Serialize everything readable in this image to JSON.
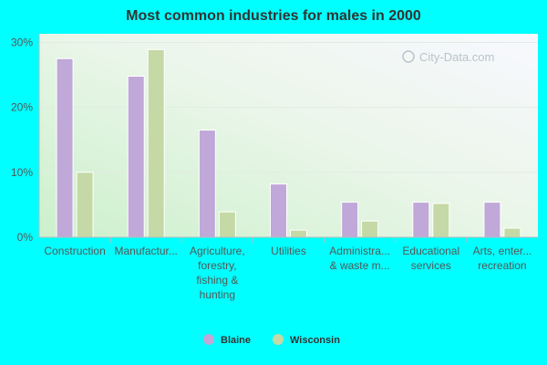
{
  "chart_data": {
    "type": "bar",
    "title": "Most common industries for males in 2000",
    "xlabel": "",
    "ylabel": "",
    "ylim": [
      0,
      30
    ],
    "y_ticks": [
      "0%",
      "10%",
      "20%",
      "30%"
    ],
    "categories": [
      [
        "Construction"
      ],
      [
        "Manufactur..."
      ],
      [
        "Agriculture,",
        "forestry,",
        "fishing &",
        "hunting"
      ],
      [
        "Utilities"
      ],
      [
        "Administra...",
        "& waste m..."
      ],
      [
        "Educational",
        "services"
      ],
      [
        "Arts, enter...",
        "recreation"
      ]
    ],
    "series": [
      {
        "name": "Blaine",
        "color": "#c0a8d8",
        "values": [
          27.5,
          24.8,
          16.5,
          8.2,
          5.4,
          5.4,
          5.4
        ]
      },
      {
        "name": "Wisconsin",
        "color": "#c5d9a6",
        "values": [
          10.0,
          28.9,
          3.9,
          1.1,
          2.5,
          5.2,
          1.4
        ]
      }
    ],
    "legend_position": "bottom",
    "grid": true,
    "watermark": "City-Data.com"
  }
}
